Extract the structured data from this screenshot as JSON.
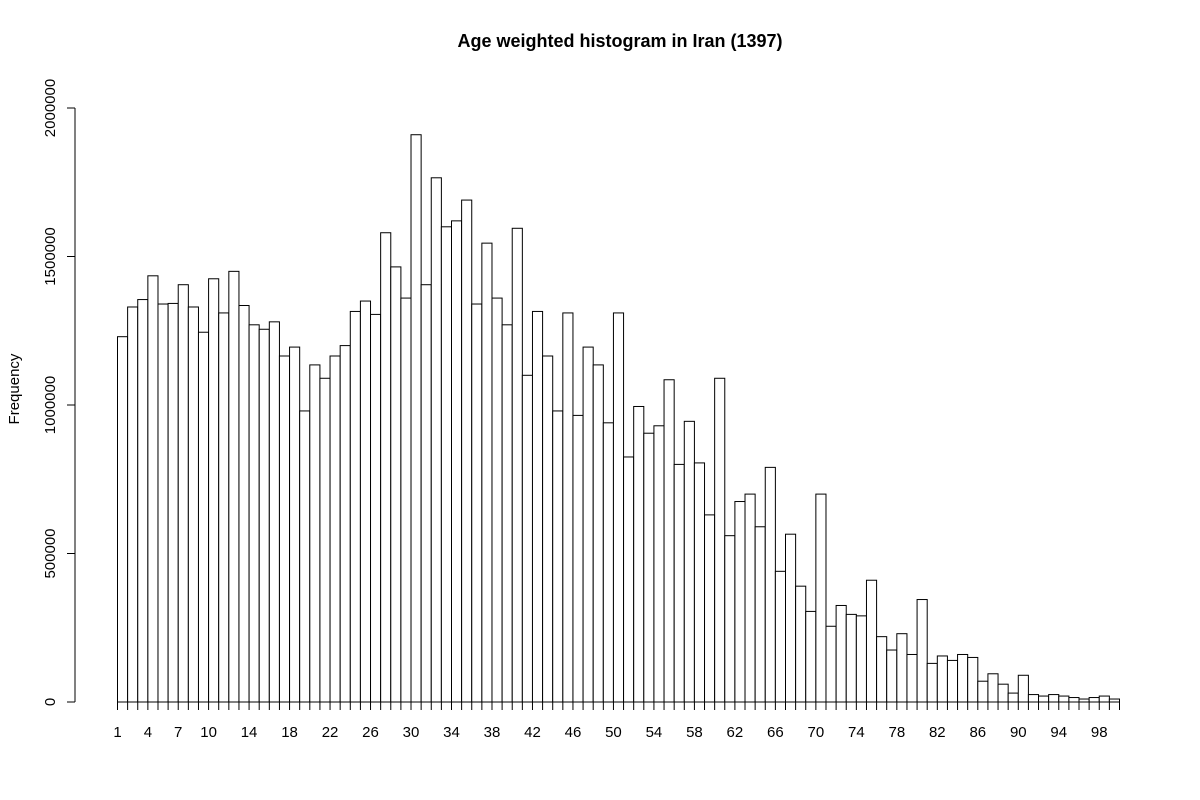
{
  "chart_data": {
    "type": "bar",
    "title": "Age weighted histogram in Iran (1397)",
    "xlabel": "",
    "ylabel": "Frequency",
    "ylim": [
      0,
      2000000
    ],
    "y_ticks": [
      0,
      500000,
      1000000,
      1500000,
      2000000
    ],
    "y_tick_labels": [
      "0",
      "500000",
      "1000000",
      "1500000",
      "2000000"
    ],
    "x_tick_labels": [
      "1",
      "4",
      "7",
      "10",
      "14",
      "18",
      "22",
      "26",
      "30",
      "34",
      "38",
      "42",
      "46",
      "50",
      "54",
      "58",
      "62",
      "66",
      "70",
      "74",
      "78",
      "82",
      "86",
      "90",
      "94",
      "98"
    ],
    "grid": false,
    "legend": "none",
    "categories": [
      1,
      2,
      3,
      4,
      5,
      6,
      7,
      8,
      9,
      10,
      11,
      12,
      13,
      14,
      15,
      16,
      17,
      18,
      19,
      20,
      21,
      22,
      23,
      24,
      25,
      26,
      27,
      28,
      29,
      30,
      31,
      32,
      33,
      34,
      35,
      36,
      37,
      38,
      39,
      40,
      41,
      42,
      43,
      44,
      45,
      46,
      47,
      48,
      49,
      50,
      51,
      52,
      53,
      54,
      55,
      56,
      57,
      58,
      59,
      60,
      61,
      62,
      63,
      64,
      65,
      66,
      67,
      68,
      69,
      70,
      71,
      72,
      73,
      74,
      75,
      76,
      77,
      78,
      79,
      80,
      81,
      82,
      83,
      84,
      85,
      86,
      87,
      88,
      89,
      90,
      91,
      92,
      93,
      94,
      95,
      96,
      97,
      98,
      99
    ],
    "values": [
      1230000,
      1330000,
      1355000,
      1435000,
      1340000,
      1342000,
      1405000,
      1330000,
      1245000,
      1425000,
      1310000,
      1450000,
      1335000,
      1270000,
      1255000,
      1280000,
      1165000,
      1195000,
      980000,
      1135000,
      1090000,
      1165000,
      1200000,
      1315000,
      1350000,
      1305000,
      1580000,
      1465000,
      1360000,
      1910000,
      1405000,
      1765000,
      1600000,
      1620000,
      1690000,
      1340000,
      1545000,
      1360000,
      1270000,
      1595000,
      1100000,
      1315000,
      1165000,
      980000,
      1310000,
      965000,
      1195000,
      1135000,
      940000,
      1310000,
      825000,
      995000,
      905000,
      930000,
      1085000,
      800000,
      945000,
      805000,
      630000,
      1090000,
      560000,
      675000,
      700000,
      590000,
      790000,
      440000,
      565000,
      390000,
      305000,
      700000,
      255000,
      325000,
      295000,
      290000,
      410000,
      220000,
      175000,
      230000,
      160000,
      345000,
      130000,
      155000,
      140000,
      160000,
      150000,
      70000,
      95000,
      60000,
      30000,
      90000,
      25000,
      20000,
      25000,
      20000,
      15000,
      10000,
      15000,
      20000,
      10000
    ],
    "bar_color": "#ffffff",
    "edge_color": "#000000"
  }
}
